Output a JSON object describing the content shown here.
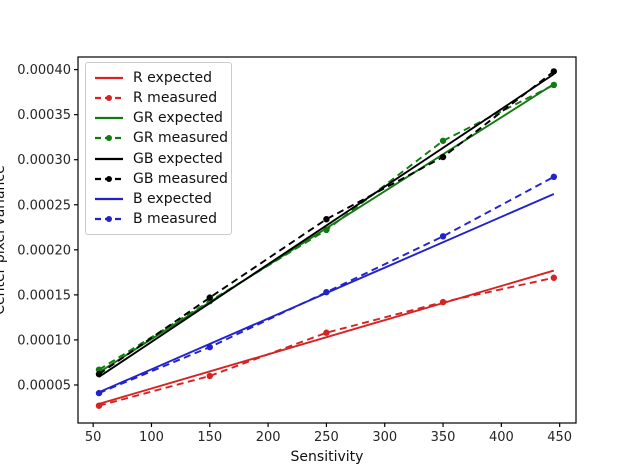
{
  "window": {
    "background": "#ffffff"
  },
  "chart_data": {
    "type": "line",
    "title": "",
    "xlabel": "Sensitivity",
    "ylabel": "Center pixel variance",
    "xlim": [
      37,
      464
    ],
    "ylim": [
      7.8e-06,
      0.000414
    ],
    "x_ticks": [
      50,
      100,
      150,
      200,
      250,
      300,
      350,
      400,
      450
    ],
    "y_ticks": [
      5e-05,
      0.0001,
      0.00015,
      0.0002,
      0.00025,
      0.0003,
      0.00035,
      0.0004
    ],
    "y_tick_decimals": 5,
    "grid": false,
    "legend_position": "upper-left",
    "legend_border_color": "#cccccc",
    "axis_color": "#000000",
    "tick_label_color": "#262626",
    "series": [
      {
        "name": "R expected",
        "color": "#d62323",
        "line": "solid",
        "marker": false,
        "x": [
          55,
          445
        ],
        "y": [
          2.9e-05,
          0.000177
        ]
      },
      {
        "name": "R measured",
        "color": "#d62323",
        "line": "dashed",
        "marker": true,
        "x": [
          55,
          150,
          250,
          350,
          445
        ],
        "y": [
          2.7e-05,
          6e-05,
          0.000108,
          0.000142,
          0.000169
        ]
      },
      {
        "name": "GR expected",
        "color": "#117a11",
        "line": "solid",
        "marker": false,
        "x": [
          55,
          445
        ],
        "y": [
          6.4e-05,
          0.000384
        ]
      },
      {
        "name": "GR measured",
        "color": "#117a11",
        "line": "dashed",
        "marker": true,
        "x": [
          55,
          150,
          250,
          350,
          445
        ],
        "y": [
          6.7e-05,
          0.000143,
          0.000222,
          0.000321,
          0.000383
        ]
      },
      {
        "name": "GB expected",
        "color": "#000000",
        "line": "solid",
        "marker": false,
        "x": [
          55,
          445
        ],
        "y": [
          5.9e-05,
          0.000395
        ]
      },
      {
        "name": "GB measured",
        "color": "#000000",
        "line": "dashed",
        "marker": true,
        "x": [
          55,
          150,
          250,
          350,
          445
        ],
        "y": [
          6.2e-05,
          0.000147,
          0.000234,
          0.000303,
          0.000398
        ]
      },
      {
        "name": "B expected",
        "color": "#2222cc",
        "line": "solid",
        "marker": false,
        "x": [
          55,
          445
        ],
        "y": [
          4.2e-05,
          0.000262
        ]
      },
      {
        "name": "B measured",
        "color": "#2222cc",
        "line": "dashed",
        "marker": true,
        "x": [
          55,
          150,
          250,
          350,
          445
        ],
        "y": [
          4.1e-05,
          9.2e-05,
          0.000153,
          0.000215,
          0.000281
        ]
      }
    ]
  }
}
